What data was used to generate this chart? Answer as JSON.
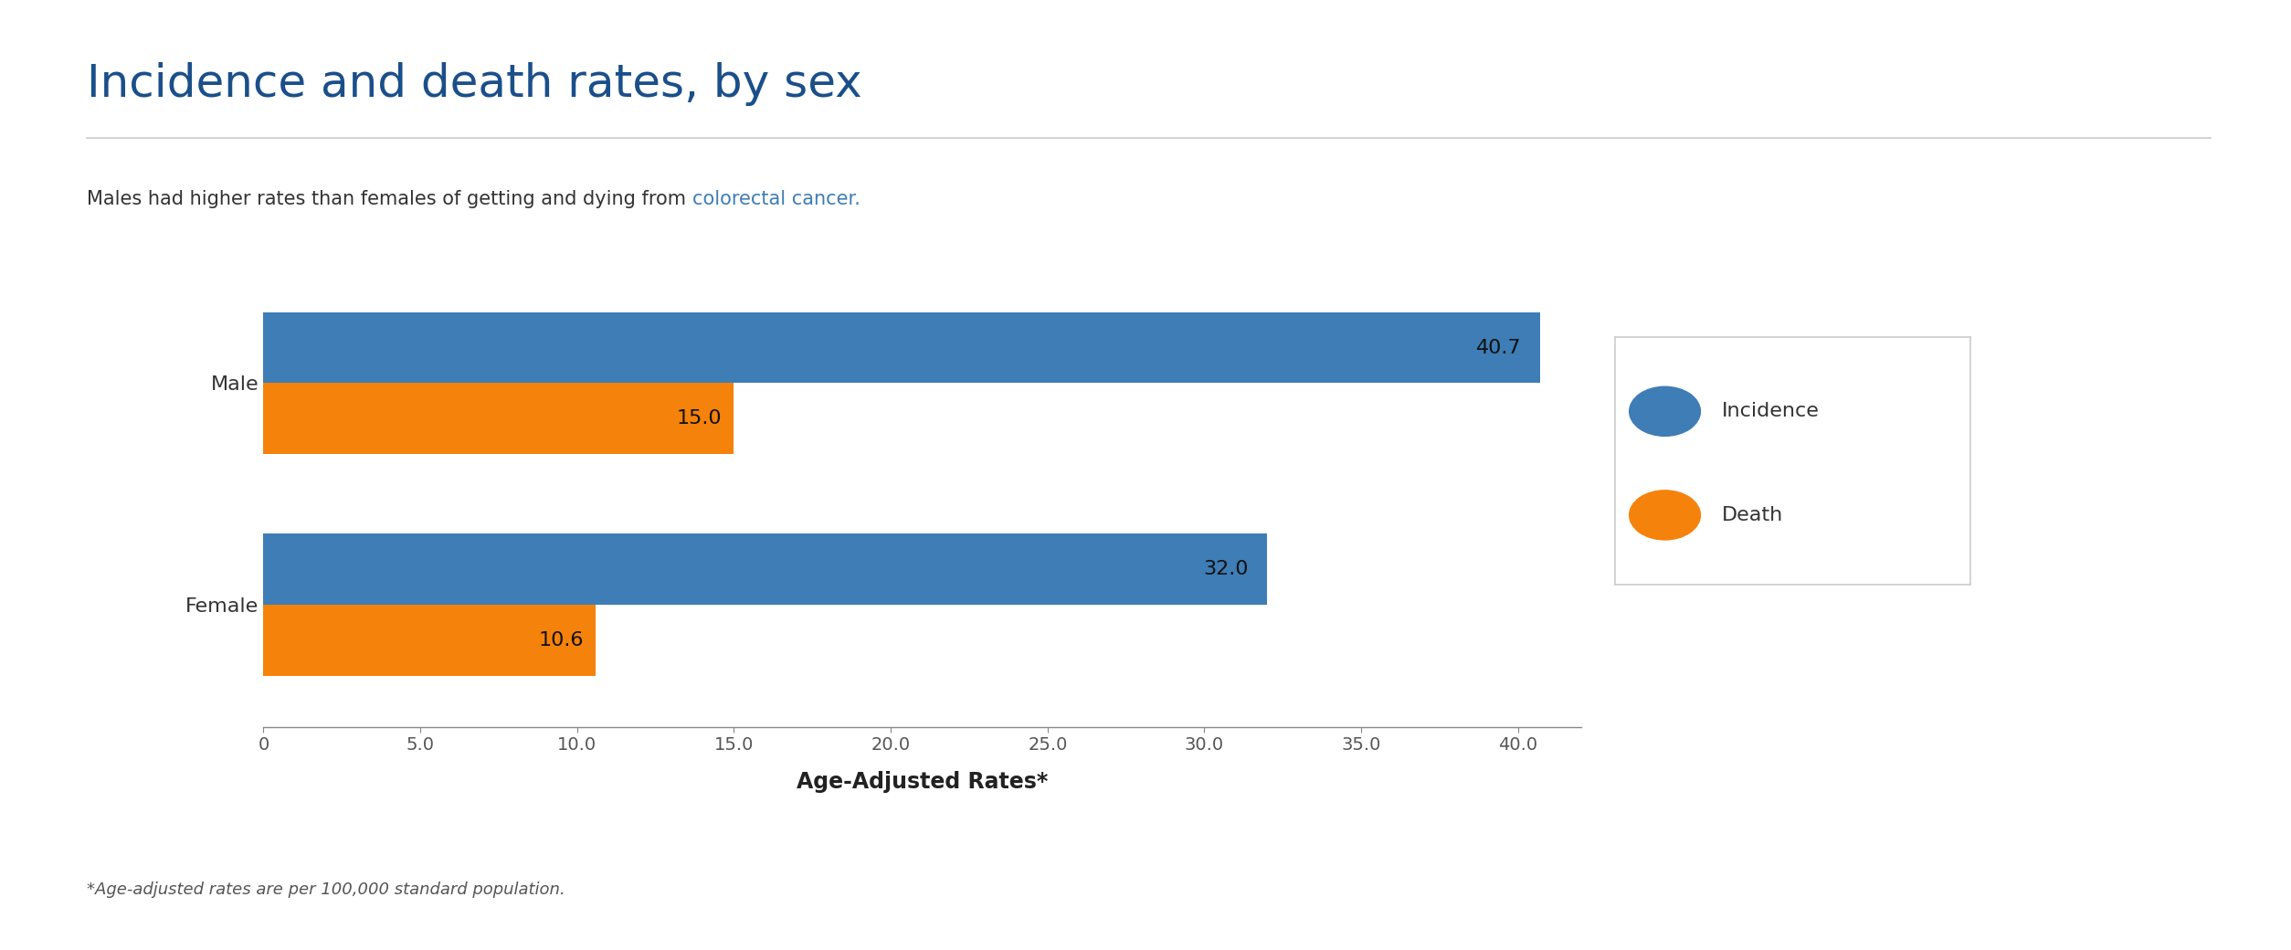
{
  "title": "Incidence and death rates, by sex",
  "subtitle_normal": "Males had higher rates than females of getting and dying from ",
  "subtitle_link": "colorectal cancer.",
  "categories": [
    "Male",
    "Female"
  ],
  "incidence_values": [
    40.7,
    32.0
  ],
  "death_values": [
    15.0,
    10.6
  ],
  "incidence_color": "#3e7db5",
  "death_color": "#f5820a",
  "xlabel": "Age-Adjusted Rates*",
  "footnote": "*Age-adjusted rates are per 100,000 standard population.",
  "xlim": [
    0,
    42
  ],
  "xticks": [
    0,
    5.0,
    10.0,
    15.0,
    20.0,
    25.0,
    30.0,
    35.0,
    40.0
  ],
  "xtick_labels": [
    "0",
    "5.0",
    "10.0",
    "15.0",
    "20.0",
    "25.0",
    "30.0",
    "35.0",
    "40.0"
  ],
  "title_color": "#1a4f8a",
  "title_fontsize": 36,
  "subtitle_fontsize": 15,
  "axis_label_fontsize": 17,
  "bar_label_fontsize": 15,
  "tick_fontsize": 14,
  "legend_labels": [
    "Incidence",
    "Death"
  ],
  "background_color": "#ffffff",
  "bar_height": 0.32
}
